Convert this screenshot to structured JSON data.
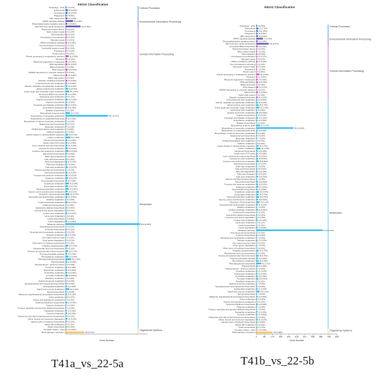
{
  "figure": {
    "caption_left": "T41a_vs_22-5a",
    "caption_right": "T41b_vs_22-5b"
  },
  "chart_data": [
    {
      "type": "bar",
      "title": "KEGG Classification",
      "xlabel": "Gene Number",
      "ylabel": "",
      "groups": [
        {
          "name": "Cellular Processes",
          "color": "#2f7ed8",
          "categories": [
            "Autophagy - other",
            "Endocytosis",
            "Peroxisome",
            "Phagosome"
          ],
          "values": [
            7,
            18,
            16,
            9
          ]
        },
        {
          "name": "Environmental Information Processing",
          "color": "#6b5fb5",
          "categories": [
            "ABC transporters",
            "MAPK signaling pathway",
            "Phosphatidylinositol signaling system",
            "Plant hormone signal transduction"
          ],
          "values": [
            14,
            60,
            12,
            120
          ]
        },
        {
          "name": "Genetic Information Processing",
          "color": "#d458d0",
          "categories": [
            "Basal transcription factors",
            "Base excision repair",
            "DNA replication",
            "Homologous recombination",
            "Mismatch repair",
            "mRNA surveillance pathway",
            "Non-homologous end-joining",
            "Nucleotide excision repair",
            "Proteasome",
            "Protein export",
            "Protein processing in endoplasmic reticulum",
            "Ribosome",
            "Ribosome biogenesis in eukaryotes",
            "RNA degradation",
            "RNA polymerase",
            "RNA transport",
            "SNARE interactions in vesicular transport",
            "Spliceosome",
            "Sulfur relay system",
            "Ubiquitin mediated proteolysis"
          ],
          "values": [
            5,
            6,
            8,
            9,
            5,
            10,
            3,
            8,
            6,
            4,
            26,
            9,
            12,
            14,
            4,
            16,
            5,
            14,
            3,
            14
          ]
        },
        {
          "name": "Metabolism",
          "color": "#3ec1e8",
          "categories": [
            "2-Oxocarboxylic acid metabolism",
            "Alanine, aspartate and glutamate metabolism",
            "alpha-Linolenic acid metabolism",
            "Amino sugar and nucleotide sugar metabolism",
            "Aminoacyl-tRNA biosynthesis",
            "Arachidonic acid metabolism",
            "Arginine and proline metabolism",
            "Arginine biosynthesis",
            "Ascorbate and aldarate metabolism",
            "beta-Alanine metabolism",
            "Betalain biosynthesis",
            "Biosynthesis of amino acids",
            "Biosynthesis of secondary metabolites",
            "Biosynthesis of unsaturated fatty acids",
            "Biosynthesis of various secondary metabolites",
            "Brassinosteroid biosynthesis",
            "Butanoate metabolism",
            "C5-Branched dibasic acid metabolism",
            "Caffeine metabolism",
            "Carbon fixation in photosynthetic organisms",
            "Carbon metabolism",
            "Carotenoid biosynthesis",
            "Citrate cycle (TCA cycle)",
            "Cutin, suberine and wax biosynthesis",
            "Cyanoamino acid metabolism",
            "Cysteine and methionine metabolism",
            "Diterpenoid biosynthesis",
            "Ether lipid metabolism",
            "Fatty acid biosynthesis",
            "Fatty acid degradation",
            "Fatty acid elongation",
            "Fatty acid metabolism",
            "Flavone and flavonol biosynthesis",
            "Flavonoid biosynthesis",
            "Fructose and mannose metabolism",
            "Galactose metabolism",
            "Glucosinolate biosynthesis",
            "Glutathione metabolism",
            "Glycerolipid metabolism",
            "Glycerophospholipid metabolism",
            "Glycine, serine and threonine metabolism",
            "Glycolysis / Gluconeogenesis",
            "Glyoxylate and dicarboxylate metabolism",
            "Histidine metabolism",
            "Inositol phosphate metabolism",
            "Isoflavonoid biosynthesis",
            "Isoquinoline alkaloid biosynthesis",
            "Limonene and pinene degradation",
            "Linoleic acid metabolism",
            "Lipoic acid metabolism",
            "Lysine biosynthesis",
            "Lysine degradation",
            "Metabolic pathways",
            "Monoterpenoid biosynthesis",
            "N-Glycan biosynthesis",
            "Nicotinate and nicotinamide metabolism",
            "Nitrogen metabolism",
            "One carbon pool by folate",
            "Other glycan degradation",
            "Other types of O-glycan biosynthesis",
            "Oxidative phosphorylation",
            "Pantothenate and CoA biosynthesis",
            "Pentose and glucuronate interconversions",
            "Pentose phosphate pathway",
            "Phenylalanine metabolism",
            "Phenylpropanoid biosynthesis",
            "Photosynthesis",
            "Photosynthesis - antenna proteins",
            "Porphyrin metabolism",
            "Propanoate metabolism",
            "Pyrimidine metabolism",
            "Pyruvate metabolism",
            "Riboflavin metabolism",
            "Selenocompound metabolism",
            "Sesquiterpenoid and triterpenoid biosynthesis",
            "Sphingolipid metabolism",
            "Starch and sucrose metabolism",
            "Steroid biosynthesis",
            "Stilbenoid, diarylheptanoid and gingerol biosynthesis",
            "Sulfur metabolism",
            "Taurine and hypotaurine metabolism",
            "Terpenoid backbone biosynthesis",
            "Thiamine metabolism",
            "Tropane, piperidine and pyridine alkaloid biosynthesis",
            "Tryptophan metabolism",
            "Tyrosine metabolism",
            "Ubiquinone and other terpenoid-quinone biosynthesis",
            "Valine, leucine and isoleucine degradation",
            "Various types of N-glycan biosynthesis",
            "Vitamin B6 metabolism",
            "Zeatin biosynthesis"
          ],
          "values": [
            10,
            14,
            20,
            28,
            12,
            8,
            16,
            9,
            14,
            10,
            3,
            35,
            340,
            10,
            6,
            8,
            6,
            2,
            4,
            20,
            38,
            12,
            12,
            14,
            16,
            22,
            9,
            6,
            8,
            12,
            9,
            16,
            6,
            14,
            16,
            18,
            10,
            26,
            20,
            24,
            16,
            30,
            14,
            6,
            16,
            4,
            8,
            8,
            12,
            3,
            4,
            10,
            600,
            4,
            8,
            6,
            10,
            4,
            6,
            4,
            20,
            8,
            20,
            12,
            22,
            45,
            12,
            6,
            10,
            10,
            12,
            18,
            4,
            6,
            8,
            10,
            30,
            6,
            10,
            8,
            4,
            12,
            6,
            6,
            10,
            10,
            8,
            14,
            8,
            4,
            8
          ]
        },
        {
          "name": "Organismal Systems",
          "color": "#f2c45e",
          "categories": [
            "Circadian rhythm - plant",
            "Plant-pathogen interaction"
          ],
          "values": [
            12,
            150
          ]
        }
      ]
    },
    {
      "type": "bar",
      "title": "KEGG Classification",
      "xlabel": "Gene Number",
      "ylabel": "",
      "xticks": [
        0,
        85,
        170,
        255,
        340,
        425,
        510,
        595,
        680,
        765,
        850
      ],
      "xlim": [
        0,
        850
      ],
      "groups": [
        {
          "name": "Cellular Processes",
          "color": "#2f7ed8",
          "categories": [
            "Autophagy - other",
            "Endocytosis",
            "Peroxisome",
            "Phagosome"
          ],
          "values": [
            9,
            22,
            18,
            12
          ]
        },
        {
          "name": "Environmental Information Processing",
          "color": "#6b5fb5",
          "categories": [
            "ABC transporters",
            "MAPK signaling pathway",
            "Phosphatidylinositol signaling system",
            "Plant hormone signal transduction"
          ],
          "values": [
            18,
            70,
            14,
            130
          ]
        },
        {
          "name": "Genetic Information Processing",
          "color": "#d458d0",
          "categories": [
            "Aminoacyl-tRNA biosynthesis",
            "Basal transcription factors",
            "Base excision repair",
            "DNA replication",
            "Homologous recombination",
            "Mismatch repair",
            "mRNA surveillance pathway",
            "Non-homologous end-joining",
            "Nucleotide excision repair",
            "Proteasome",
            "Protein export",
            "Protein processing in endoplasmic reticulum",
            "Ribosome",
            "Ribosome biogenesis in eukaryotes",
            "RNA degradation",
            "RNA polymerase",
            "RNA transport",
            "SNARE interactions in vesicular transport",
            "Spliceosome",
            "Sulfur relay system",
            "Ubiquitin mediated proteolysis"
          ],
          "values": [
            14,
            6,
            7,
            9,
            10,
            6,
            12,
            4,
            9,
            7,
            5,
            32,
            11,
            14,
            16,
            5,
            19,
            6,
            17,
            4,
            16
          ]
        },
        {
          "name": "Metabolism",
          "color": "#3ec1e8",
          "categories": [
            "2-Oxocarboxylic acid metabolism",
            "Alanine, aspartate and glutamate metabolism",
            "alpha-Linolenic acid metabolism",
            "Amino sugar and nucleotide sugar metabolism",
            "Arachidonic acid metabolism",
            "Arginine and proline metabolism",
            "Arginine biosynthesis",
            "Ascorbate and aldarate metabolism",
            "beta-Alanine metabolism",
            "Betalain biosynthesis",
            "Biosynthesis of amino acids",
            "Biosynthesis of secondary metabolites",
            "Biosynthesis of unsaturated fatty acids",
            "Biosynthesis of various secondary metabolites",
            "Brassinosteroid biosynthesis",
            "Butanoate metabolism",
            "C5-Branched dibasic acid metabolism",
            "Caffeine metabolism",
            "Carbon fixation in photosynthetic organisms",
            "Carbon metabolism",
            "Carotenoid biosynthesis",
            "Citrate cycle (TCA cycle)",
            "Cutin, suberine and wax biosynthesis",
            "Cyanoamino acid metabolism",
            "Cysteine and methionine metabolism",
            "Diterpenoid biosynthesis",
            "Ether lipid metabolism",
            "Fatty acid biosynthesis",
            "Fatty acid degradation",
            "Fatty acid elongation",
            "Fatty acid metabolism",
            "Flavone and flavonol biosynthesis",
            "Flavonoid biosynthesis",
            "Fructose and mannose metabolism",
            "Galactose metabolism",
            "Glucosinolate biosynthesis",
            "Glutathione metabolism",
            "Glycerolipid metabolism",
            "Glycerophospholipid metabolism",
            "Glycine, serine and threonine metabolism",
            "Glycolysis / Gluconeogenesis",
            "Glyoxylate and dicarboxylate metabolism",
            "Histidine metabolism",
            "Inositol phosphate metabolism",
            "Isoflavonoid biosynthesis",
            "Isoquinoline alkaloid biosynthesis",
            "Limonene and pinene degradation",
            "Linoleic acid metabolism",
            "Lipoic acid metabolism",
            "Lysine biosynthesis",
            "Lysine degradation",
            "Metabolic pathways",
            "Monoterpenoid biosynthesis",
            "N-Glycan biosynthesis",
            "Nicotinate and nicotinamide metabolism",
            "Nitrogen metabolism",
            "One carbon pool by folate",
            "Other glycan degradation",
            "Other types of O-glycan biosynthesis",
            "Oxidative phosphorylation",
            "Pantothenate and CoA biosynthesis",
            "Pentose and glucuronate interconversions",
            "Pentose phosphate pathway",
            "Phenylalanine metabolism",
            "Phenylpropanoid biosynthesis",
            "Photosynthesis",
            "Photosynthesis - antenna proteins",
            "Porphyrin metabolism",
            "Propanoate metabolism",
            "Pyrimidine metabolism",
            "Pyruvate metabolism",
            "Riboflavin metabolism",
            "Selenocompound metabolism",
            "Sesquiterpenoid and triterpenoid biosynthesis",
            "Sphingolipid metabolism",
            "Starch and sucrose metabolism",
            "Steroid biosynthesis",
            "Stilbenoid, diarylheptanoid and gingerol biosynthesis",
            "Sulfur metabolism",
            "Taurine and hypotaurine metabolism",
            "Terpenoid backbone biosynthesis",
            "Thiamine metabolism",
            "Tropane, piperidine and pyridine alkaloid biosynthesis",
            "Tryptophan metabolism",
            "Tyrosine metabolism",
            "Ubiquinone and other terpenoid-quinone biosynthesis",
            "Valine, leucine and isoleucine degradation",
            "Various types of N-glycan biosynthesis",
            "Vitamin B6 metabolism",
            "Zeatin biosynthesis"
          ],
          "values": [
            12,
            16,
            24,
            32,
            9,
            18,
            10,
            16,
            12,
            4,
            40,
            390,
            12,
            8,
            9,
            7,
            3,
            5,
            24,
            44,
            14,
            14,
            16,
            18,
            26,
            10,
            7,
            10,
            14,
            10,
            18,
            7,
            16,
            18,
            20,
            12,
            30,
            24,
            28,
            18,
            34,
            16,
            7,
            18,
            5,
            9,
            9,
            14,
            4,
            5,
            12,
            700,
            5,
            9,
            7,
            12,
            5,
            7,
            5,
            24,
            9,
            24,
            14,
            26,
            52,
            14,
            7,
            12,
            12,
            14,
            20,
            5,
            7,
            9,
            12,
            34,
            7,
            12,
            9,
            5,
            14,
            7,
            7,
            12,
            12,
            9,
            16,
            9,
            5,
            9
          ]
        },
        {
          "name": "Organismal Systems",
          "color": "#f2c45e",
          "categories": [
            "Circadian rhythm - plant",
            "Plant-pathogen interaction"
          ],
          "values": [
            14,
            170
          ]
        }
      ]
    }
  ]
}
